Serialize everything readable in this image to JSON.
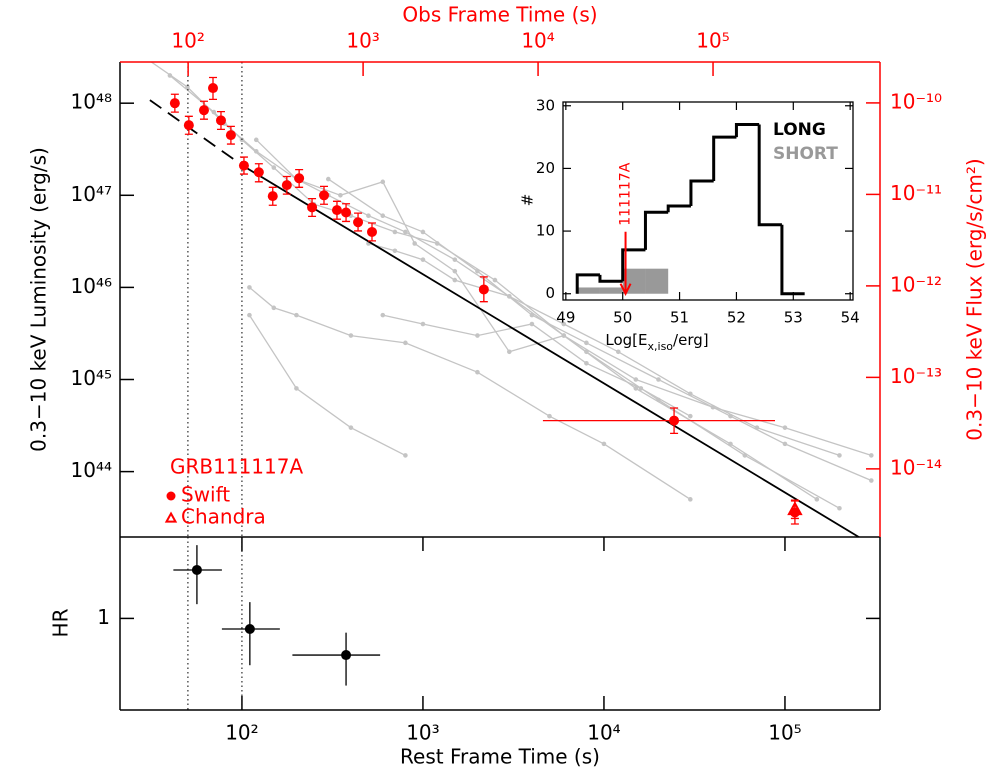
{
  "chart_data": [
    {
      "type": "scatter",
      "log_x": true,
      "log_y": true,
      "x2label": "Obs Frame Time (s)",
      "ylabel": "0.3−10 keV Luminosity (erg/s)",
      "y2label": "0.3−10 keV Flux (erg/s/cm²)",
      "axis2_color": "#ff0000",
      "xlim": [
        21.2,
        335000
      ],
      "x2lim": [
        40.8,
        900000
      ],
      "x2ticks": [
        {
          "value": 100,
          "label": "10²"
        },
        {
          "value": 1000,
          "label": "10³"
        },
        {
          "value": 10000,
          "label": "10⁴"
        },
        {
          "value": 100000,
          "label": "10⁵"
        }
      ],
      "ylim": [
        1.95e+43,
        2.8e+48
      ],
      "yticks": [
        {
          "value": 1e+44,
          "label": "10⁴⁴"
        },
        {
          "value": 1e+45,
          "label": "10⁴⁵"
        },
        {
          "value": 1e+46,
          "label": "10⁴⁶"
        },
        {
          "value": 1e+47,
          "label": "10⁴⁷"
        },
        {
          "value": 1e+48,
          "label": "10⁴⁸"
        }
      ],
      "y2lim": [
        1.8e-15,
        2.8e-10
      ],
      "y2ticks": [
        {
          "value": 1e-14,
          "label": "10⁻¹⁴"
        },
        {
          "value": 1e-13,
          "label": "10⁻¹³"
        },
        {
          "value": 1e-12,
          "label": "10⁻¹²"
        },
        {
          "value": 1e-11,
          "label": "10⁻¹¹"
        },
        {
          "value": 1e-10,
          "label": "10⁻¹⁰"
        }
      ],
      "annotation": "GRB111117A",
      "annotation_color": "#ff0000",
      "vlines": [
        50.3,
        100
      ],
      "curve_color": "#c4c4c4",
      "curves": [
        {
          "x": [
            30,
            50,
            80,
            120,
            200,
            300,
            500,
            800,
            1500,
            3000,
            8000,
            20000,
            60000,
            200000
          ],
          "values": [
            3e+48,
            1.5e+48,
            6e+47,
            3e+47,
            1.5e+47,
            1e+47,
            6e+46,
            4e+46,
            2e+46,
            8e+45,
            2e+45,
            6e+44,
            1.5e+44,
            4e+43
          ]
        },
        {
          "x": [
            40,
            70,
            100,
            150,
            250,
            400,
            700,
            1200,
            2500,
            6000,
            15000,
            50000,
            150000
          ],
          "values": [
            2e+48,
            8e+47,
            4e+47,
            2e+47,
            8e+46,
            6e+46,
            4e+46,
            3e+46,
            1.2e+46,
            3e+45,
            8e+44,
            2e+44,
            5e+43
          ]
        },
        {
          "x": [
            110,
            150,
            200,
            400,
            800,
            2000,
            5000,
            10000,
            30000
          ],
          "values": [
            1e+46,
            6e+45,
            5e+45,
            3e+45,
            2.5e+45,
            1.2e+45,
            4e+44,
            2e+44,
            5e+43
          ]
        },
        {
          "x": [
            110,
            200,
            400,
            800
          ],
          "values": [
            5e+45,
            8e+44,
            3e+44,
            1.5e+44
          ]
        },
        {
          "x": [
            300,
            600,
            1000,
            2000,
            4000,
            8000,
            20000,
            50000,
            100000,
            300000
          ],
          "values": [
            1.5e+47,
            6e+46,
            4e+46,
            1.5e+46,
            5e+45,
            2.5e+45,
            1e+45,
            4e+44,
            2e+44,
            8e+43
          ]
        },
        {
          "x": [
            500,
            700,
            1000,
            1500,
            3000,
            6000,
            12000,
            30000,
            70000,
            200000
          ],
          "values": [
            3e+46,
            2.5e+46,
            2e+46,
            1.2e+46,
            8e+45,
            4e+45,
            2e+45,
            7e+44,
            3e+44,
            1.5e+44
          ]
        },
        {
          "x": [
            120,
            200,
            350,
            600,
            900,
            1500,
            3000,
            6000,
            15000,
            40000,
            100000,
            300000
          ],
          "values": [
            4e+47,
            1.5e+47,
            1e+47,
            1.4e+47,
            3e+46,
            1.5e+46,
            2e+45,
            3e+45,
            1e+45,
            5e+44,
            3e+44,
            1.5e+44
          ]
        },
        {
          "x": [
            600,
            1000,
            2000,
            4000,
            8000,
            16000,
            30000
          ],
          "values": [
            5e+45,
            4e+45,
            3e+45,
            4e+45,
            1.5e+45,
            8e+44,
            4e+44
          ]
        }
      ],
      "extrapolation": {
        "color": "#000000",
        "x": [
          31,
          101
        ],
        "values": [
          1.08e+48,
          2.1e+47
        ]
      },
      "fit": {
        "color": "#000000",
        "x": [
          101,
          259000
        ],
        "values": [
          2.1e+47,
          1.92e+43
        ]
      },
      "series": [
        {
          "name": "Swift",
          "color": "#ff0000",
          "marker": "circle",
          "x": [
            42.6,
            50.9,
            61.7,
            69.2,
            76.6,
            86.9,
            102.6,
            124,
            148,
            177,
            207,
            244,
            284,
            335,
            376,
            438,
            523,
            2170,
            24400,
            113500
          ],
          "values": [
            1e+48,
            5.77e+47,
            8.4e+47,
            1.46e+48,
            6.5e+47,
            4.5e+47,
            2.1e+47,
            1.78e+47,
            9.8e+46,
            1.29e+47,
            1.53e+47,
            7.4e+46,
            1e+47,
            6.9e+46,
            6.5e+46,
            5.1e+46,
            4e+46,
            9.5e+45,
            3.58e+44,
            3.6e+43
          ],
          "lower": [
            8e+47,
            4.6e+47,
            6.7e+47,
            1.1e+48,
            5.2e+47,
            3.6e+47,
            1.7e+47,
            1.4e+47,
            7.8e+46,
            1.03e+47,
            1.22e+47,
            5.9e+46,
            8e+46,
            5.5e+46,
            5.2e+46,
            4.1e+46,
            3.2e+46,
            7e+45,
            2.6e+44,
            2.7e+43
          ],
          "upper": [
            1.25e+48,
            7.2e+47,
            1.05e+48,
            1.9e+48,
            8.1e+47,
            5.6e+47,
            2.6e+47,
            2.2e+47,
            1.22e+47,
            1.6e+47,
            1.9e+47,
            9.2e+46,
            1.25e+47,
            8.6e+46,
            8.1e+46,
            6.4e+46,
            5e+46,
            1.3e+46,
            4.9e+44,
            4.8e+43
          ],
          "x_lower": [
            null,
            null,
            null,
            null,
            null,
            null,
            null,
            null,
            null,
            null,
            null,
            null,
            null,
            null,
            null,
            null,
            null,
            null,
            4600,
            null
          ],
          "x_upper": [
            null,
            null,
            null,
            null,
            null,
            null,
            null,
            null,
            null,
            null,
            null,
            null,
            null,
            null,
            null,
            null,
            null,
            null,
            88100,
            null
          ]
        },
        {
          "name": "Chandra",
          "color": "#ff0000",
          "marker": "triangle",
          "x": [
            113500
          ],
          "values": [
            3.9e+43
          ],
          "lower": [
            3.1e+43
          ],
          "upper": [
            4.9e+43
          ]
        }
      ]
    },
    {
      "type": "errorbar",
      "log_x": true,
      "log_y": false,
      "xlabel": "Rest Frame Time (s)",
      "ylabel": "HR",
      "xlim": [
        21.2,
        335000
      ],
      "xticks": [
        {
          "value": 100,
          "label": "10²"
        },
        {
          "value": 1000,
          "label": "10³"
        },
        {
          "value": 10000,
          "label": "10⁴"
        },
        {
          "value": 100000,
          "label": "10⁵"
        }
      ],
      "ylim": [
        0.55,
        1.4
      ],
      "yticks": [
        1
      ],
      "vlines": [
        50.3,
        100
      ],
      "series": [
        {
          "color": "#000000",
          "x": [
            56.4,
            110.6,
            376
          ],
          "values": [
            1.238,
            0.948,
            0.82
          ],
          "lower": [
            1.07,
            0.77,
            0.67
          ],
          "upper": [
            1.36,
            1.08,
            0.93
          ],
          "x_lower": [
            41.8,
            77.5,
            190
          ],
          "x_upper": [
            77.5,
            162,
            580
          ]
        }
      ]
    },
    {
      "type": "histogram",
      "xlabel": {
        "text": "Log[E",
        "sub": "x,iso",
        "tail": "/erg]"
      },
      "ylabel": "#",
      "xlim": [
        48.95,
        54.05
      ],
      "xticks": [
        49,
        50,
        51,
        52,
        53,
        54
      ],
      "ylim": [
        -1,
        30.6
      ],
      "yticks": [
        0,
        10,
        20,
        30
      ],
      "bins": [
        49.2,
        49.6,
        50.0,
        50.4,
        50.8,
        51.2,
        51.6,
        52.0,
        52.4,
        52.8,
        53.2
      ],
      "annotation": {
        "text": "111117A",
        "x": 50.05,
        "color": "#ff0000"
      },
      "series": [
        {
          "name": "LONG",
          "color": "#000000",
          "style": "step",
          "values": [
            3,
            2,
            7,
            13,
            14,
            18,
            25,
            27,
            11,
            0
          ]
        },
        {
          "name": "SHORT",
          "color": "#999999",
          "style": "filled",
          "values": [
            1,
            1,
            4,
            4,
            0,
            0,
            0,
            0,
            0,
            0
          ]
        }
      ]
    }
  ]
}
